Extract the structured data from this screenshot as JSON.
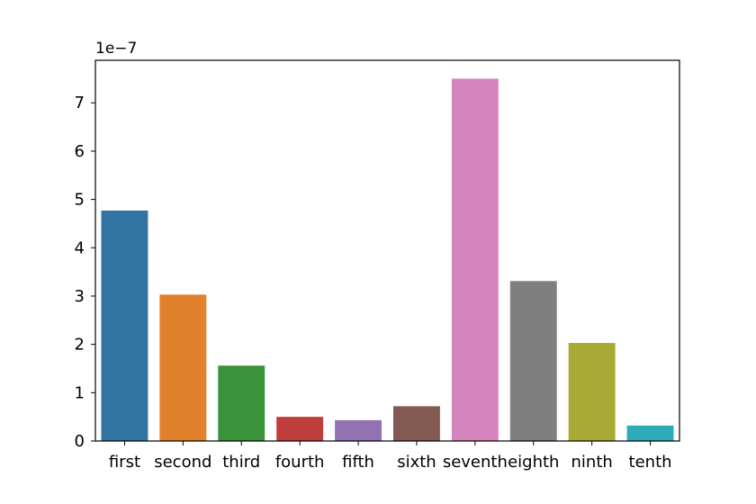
{
  "chart_data": {
    "type": "bar",
    "title": "",
    "xlabel": "",
    "ylabel": "",
    "y_offset_label": "1e−7",
    "categories": [
      "first",
      "second",
      "third",
      "fourth",
      "fifth",
      "sixth",
      "seventh",
      "eighth",
      "ninth",
      "tenth"
    ],
    "values": [
      4.77e-07,
      3.03e-07,
      1.56e-07,
      5e-08,
      4.3e-08,
      7.2e-08,
      7.5e-07,
      3.31e-07,
      2.03e-07,
      3.2e-08
    ],
    "colors": [
      "#3274a1",
      "#e1812c",
      "#3a923a",
      "#c03d3e",
      "#9372b2",
      "#845b53",
      "#d684bd",
      "#7f7f7f",
      "#a9aa35",
      "#2eabb8"
    ],
    "ylim": [
      0,
      7.88e-07
    ],
    "yticks": [
      0,
      1e-07,
      2e-07,
      3e-07,
      4e-07,
      5e-07,
      6e-07,
      7e-07
    ],
    "ytick_labels": [
      "0",
      "1",
      "2",
      "3",
      "4",
      "5",
      "6",
      "7"
    ],
    "grid": false,
    "legend": "none"
  }
}
